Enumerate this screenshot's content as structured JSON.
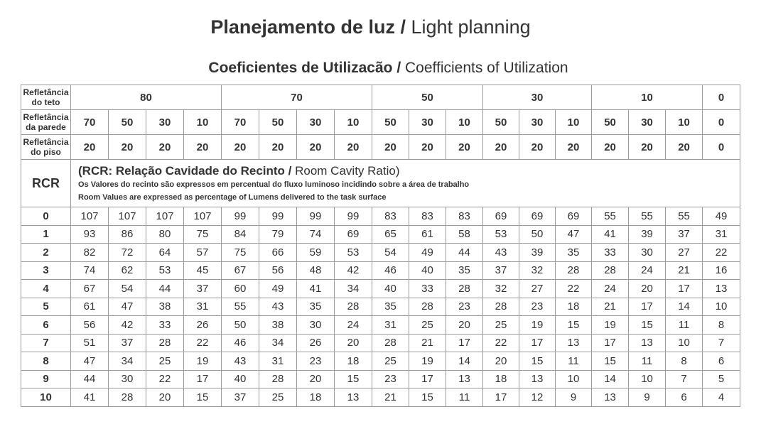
{
  "title": {
    "bold": "Planejamento de luz /",
    "normal": " Light planning"
  },
  "subtitle": {
    "bold": "Coeficientes de Utilizacão /",
    "normal": " Coefficients of Utilization"
  },
  "table": {
    "labels": {
      "ceiling": [
        "Refletância",
        "do teto"
      ],
      "wall": [
        "Refletância",
        "da parede"
      ],
      "floor": [
        "Refletância",
        "do piso"
      ]
    },
    "ceiling_groups": [
      {
        "value": "80",
        "span": 4
      },
      {
        "value": "70",
        "span": 4
      },
      {
        "value": "50",
        "span": 3
      },
      {
        "value": "30",
        "span": 3
      },
      {
        "value": "10",
        "span": 3
      },
      {
        "value": "0",
        "span": 1
      }
    ],
    "wall": [
      "70",
      "50",
      "30",
      "10",
      "70",
      "50",
      "30",
      "10",
      "50",
      "30",
      "10",
      "50",
      "30",
      "10",
      "50",
      "30",
      "10",
      "0"
    ],
    "floor": [
      "20",
      "20",
      "20",
      "20",
      "20",
      "20",
      "20",
      "20",
      "20",
      "20",
      "20",
      "20",
      "20",
      "20",
      "20",
      "20",
      "20",
      "0"
    ],
    "rcr_label": "RCR",
    "caption": {
      "main_bold": "(RCR: Relação Cavidade do Recinto /",
      "main_normal": " Room Cavity Ratio)",
      "line_pt": "Os Valores do recinto são expressos em percentual do fluxo luminoso incidindo sobre a área de trabalho",
      "line_en": "Room Values are expressed as percentage of Lumens delivered to the task surface"
    },
    "rows": [
      {
        "rcr": "0",
        "values": [
          "107",
          "107",
          "107",
          "107",
          "99",
          "99",
          "99",
          "99",
          "83",
          "83",
          "83",
          "69",
          "69",
          "69",
          "55",
          "55",
          "55",
          "49"
        ]
      },
      {
        "rcr": "1",
        "values": [
          "93",
          "86",
          "80",
          "75",
          "84",
          "79",
          "74",
          "69",
          "65",
          "61",
          "58",
          "53",
          "50",
          "47",
          "41",
          "39",
          "37",
          "31"
        ]
      },
      {
        "rcr": "2",
        "values": [
          "82",
          "72",
          "64",
          "57",
          "75",
          "66",
          "59",
          "53",
          "54",
          "49",
          "44",
          "43",
          "39",
          "35",
          "33",
          "30",
          "27",
          "22"
        ]
      },
      {
        "rcr": "3",
        "values": [
          "74",
          "62",
          "53",
          "45",
          "67",
          "56",
          "48",
          "42",
          "46",
          "40",
          "35",
          "37",
          "32",
          "28",
          "28",
          "24",
          "21",
          "16"
        ]
      },
      {
        "rcr": "4",
        "values": [
          "67",
          "54",
          "44",
          "37",
          "60",
          "49",
          "41",
          "34",
          "40",
          "33",
          "28",
          "32",
          "27",
          "22",
          "24",
          "20",
          "17",
          "13"
        ]
      },
      {
        "rcr": "5",
        "values": [
          "61",
          "47",
          "38",
          "31",
          "55",
          "43",
          "35",
          "28",
          "35",
          "28",
          "23",
          "28",
          "23",
          "18",
          "21",
          "17",
          "14",
          "10"
        ]
      },
      {
        "rcr": "6",
        "values": [
          "56",
          "42",
          "33",
          "26",
          "50",
          "38",
          "30",
          "24",
          "31",
          "25",
          "20",
          "25",
          "19",
          "15",
          "19",
          "15",
          "11",
          "8"
        ]
      },
      {
        "rcr": "7",
        "values": [
          "51",
          "37",
          "28",
          "22",
          "46",
          "34",
          "26",
          "20",
          "28",
          "21",
          "17",
          "22",
          "17",
          "13",
          "17",
          "13",
          "10",
          "7"
        ]
      },
      {
        "rcr": "8",
        "values": [
          "47",
          "34",
          "25",
          "19",
          "43",
          "31",
          "23",
          "18",
          "25",
          "19",
          "14",
          "20",
          "15",
          "11",
          "15",
          "11",
          "8",
          "6"
        ]
      },
      {
        "rcr": "9",
        "values": [
          "44",
          "30",
          "22",
          "17",
          "40",
          "28",
          "20",
          "15",
          "23",
          "17",
          "13",
          "18",
          "13",
          "10",
          "14",
          "10",
          "7",
          "5"
        ]
      },
      {
        "rcr": "10",
        "values": [
          "41",
          "28",
          "20",
          "15",
          "37",
          "25",
          "18",
          "13",
          "21",
          "15",
          "11",
          "17",
          "12",
          "9",
          "13",
          "9",
          "6",
          "4"
        ]
      }
    ]
  }
}
